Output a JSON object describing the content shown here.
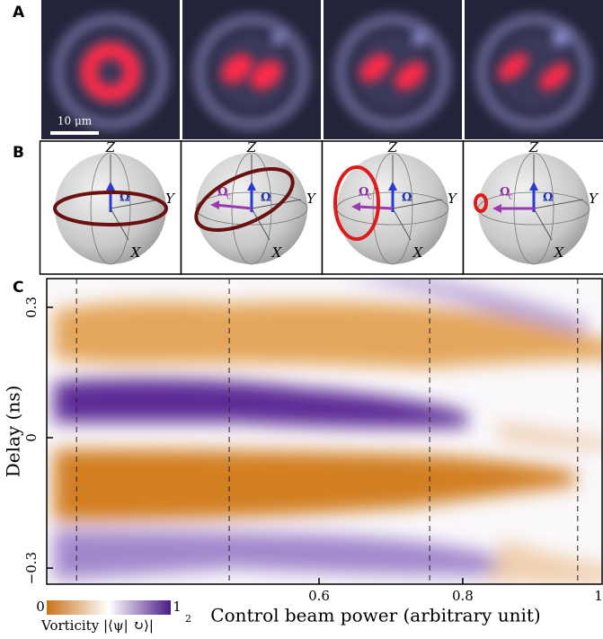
{
  "figure": {
    "panel_a": {
      "label": "A",
      "scale_bar": "10 μm"
    },
    "panel_b": {
      "label": "B",
      "z": "Z",
      "y": "Y",
      "x": "X",
      "omega": "Ω",
      "omega_c": "Ω",
      "omega_c_sub": "c"
    },
    "panel_c": {
      "label": "C"
    }
  },
  "chart_data": {
    "type": "heatmap",
    "xlabel": "Control beam power (arbitrary unit)",
    "ylabel": "Delay (ns)",
    "xlim": [
      0.221,
      0.994
    ],
    "ylim": [
      -0.337,
      0.366
    ],
    "xticks": [
      0.6,
      0.8,
      1
    ],
    "yticks": [
      {
        "value": -0.3,
        "label": "−0.3"
      },
      0,
      0.3
    ],
    "dashed_x": [
      0.2625,
      0.475,
      0.754,
      0.96
    ],
    "colorbar": {
      "label": "Vorticity |⟨ψ| ↻⟩|",
      "exponent": "2",
      "ticks": [
        0,
        1
      ],
      "colors": [
        "#c8731a",
        "#ffffff",
        "#4b1a86"
      ]
    }
  }
}
